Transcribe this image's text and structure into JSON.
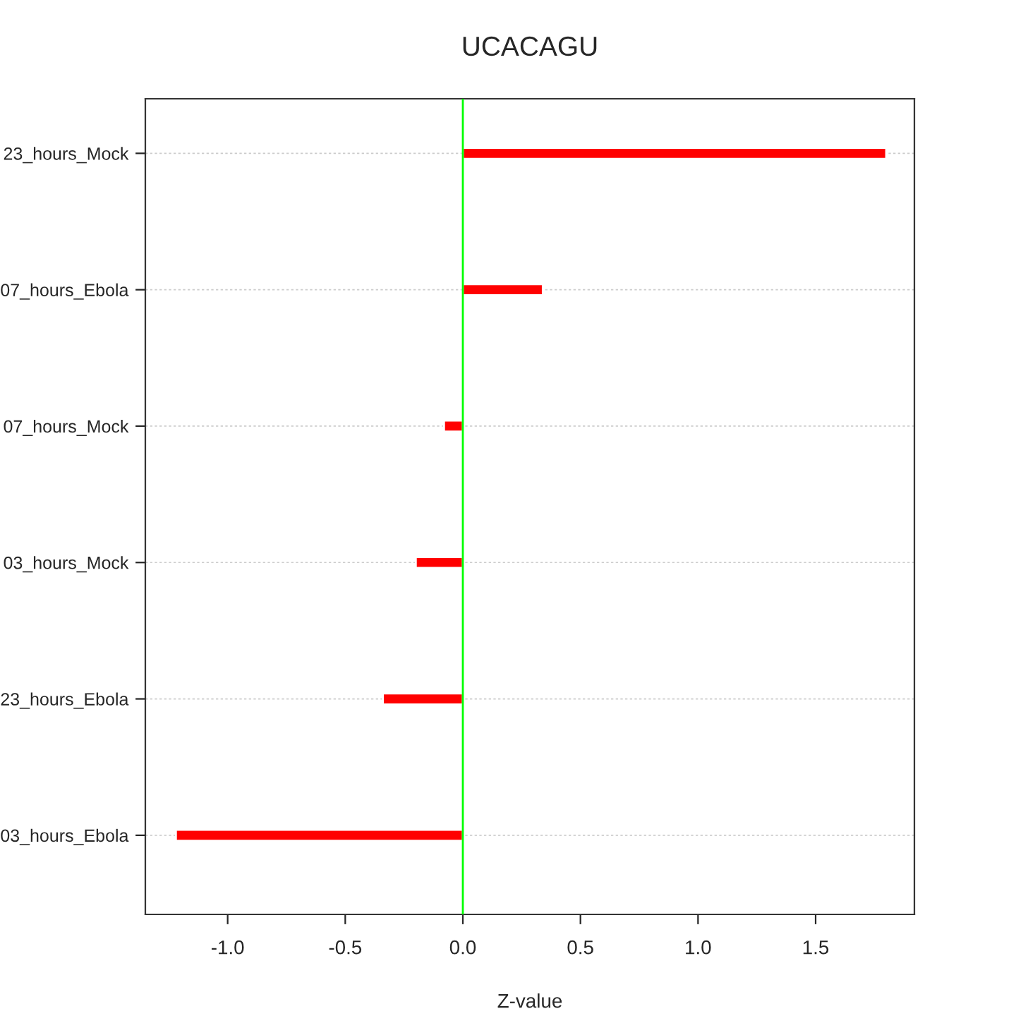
{
  "chart_data": {
    "type": "bar",
    "orientation": "horizontal",
    "title": "UCACAGU",
    "xlabel": "Z-value",
    "categories": [
      "23_hours_Mock",
      "07_hours_Ebola",
      "07_hours_Mock",
      "03_hours_Mock",
      "23_hours_Ebola",
      "03_hours_Ebola"
    ],
    "values": [
      1.8,
      0.34,
      -0.08,
      -0.2,
      -0.34,
      -1.22
    ],
    "color": "#ff0000",
    "xlim": [
      -1.35,
      1.92
    ],
    "xticks": [
      {
        "value": -1.0,
        "label": "-1.0"
      },
      {
        "value": -0.5,
        "label": "-0.5"
      },
      {
        "value": 0.0,
        "label": "0.0"
      },
      {
        "value": 0.5,
        "label": "0.5"
      },
      {
        "value": 1.0,
        "label": "1.0"
      },
      {
        "value": 1.5,
        "label": "1.5"
      }
    ],
    "ref_lines": [
      {
        "axis": "x",
        "value": 0,
        "color": "#00ff00"
      }
    ],
    "grid": "y"
  }
}
